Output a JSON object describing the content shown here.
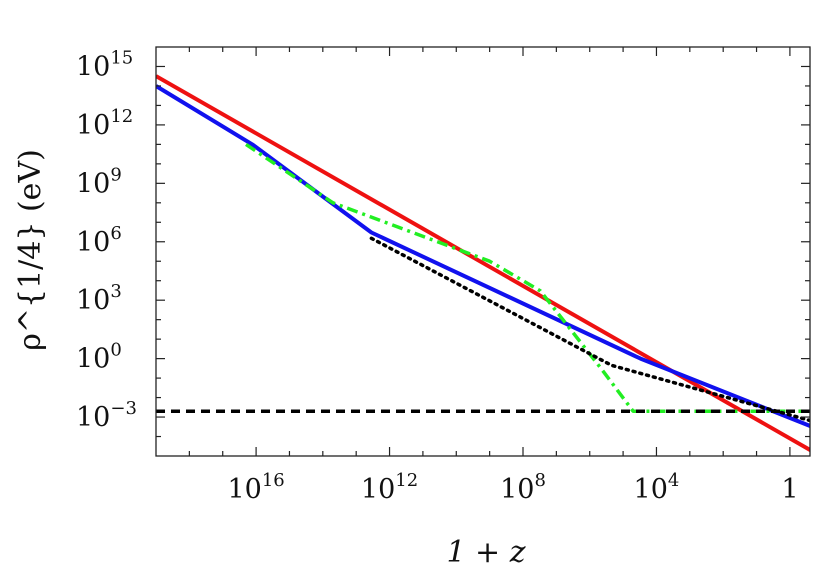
{
  "chart_data": {
    "type": "line",
    "title": "",
    "xlabel": "1 + z",
    "ylabel": "ρ^{1/4} (eV)",
    "xscale": "log",
    "yscale": "log",
    "x_reversed": true,
    "xlim": [
      1e+19,
      0.25
    ],
    "ylim": [
      1e-05,
      1e+16
    ],
    "grid": false,
    "legend": "none",
    "x_ticks": [
      {
        "base": "10",
        "exp": "16",
        "value": 1e+16
      },
      {
        "base": "10",
        "exp": "12",
        "value": 1000000000000.0
      },
      {
        "base": "10",
        "exp": "8",
        "value": 100000000.0
      },
      {
        "base": "10",
        "exp": "4",
        "value": 10000.0
      },
      {
        "base": "1",
        "exp": "",
        "value": 1
      }
    ],
    "y_ticks": [
      {
        "base": "10",
        "exp": "15",
        "value": 1000000000000000.0
      },
      {
        "base": "10",
        "exp": "12",
        "value": 1000000000000.0
      },
      {
        "base": "10",
        "exp": "9",
        "value": 1000000000.0
      },
      {
        "base": "10",
        "exp": "6",
        "value": 1000000.0
      },
      {
        "base": "10",
        "exp": "3",
        "value": 1000.0
      },
      {
        "base": "10",
        "exp": "0",
        "value": 1
      },
      {
        "base": "10",
        "exp": "−3",
        "value": 0.001
      }
    ],
    "series": [
      {
        "color": "#ee1111",
        "dash": "solid",
        "points": [
          [
            1e+19,
            320000000000000.0
          ],
          [
            0.12,
            1e-05
          ]
        ]
      },
      {
        "color": "#1111ee",
        "dash": "solid",
        "points": [
          [
            1e+19,
            100000000000000.0
          ],
          [
            1.3e+16,
            100000000000.0
          ],
          [
            3500000000000.0,
            3000000.0
          ],
          [
            30000.0,
            1
          ],
          [
            0.2,
            0.0003
          ]
        ]
      },
      {
        "color": "#22ee22",
        "dash": "dashdot",
        "points": [
          [
            2e+16,
            100000000000.0
          ],
          [
            50000000000000.0,
            100000000.0
          ],
          [
            1000000000.0,
            100000.0
          ],
          [
            30000000.0,
            3000.0
          ],
          [
            450000.0,
            0.3
          ],
          [
            50000.0,
            0.002
          ],
          [
            0.2,
            0.002
          ]
        ]
      },
      {
        "color": "#000000",
        "dash": "dotted",
        "points": [
          [
            3500000000000.0,
            1500000.0
          ],
          [
            220000.0,
            0.45
          ],
          [
            0.2,
            0.0006
          ]
        ]
      },
      {
        "color": "#000000",
        "dash": "dashed",
        "points": [
          [
            1e+19,
            0.002
          ],
          [
            0.2,
            0.002
          ]
        ]
      }
    ]
  }
}
